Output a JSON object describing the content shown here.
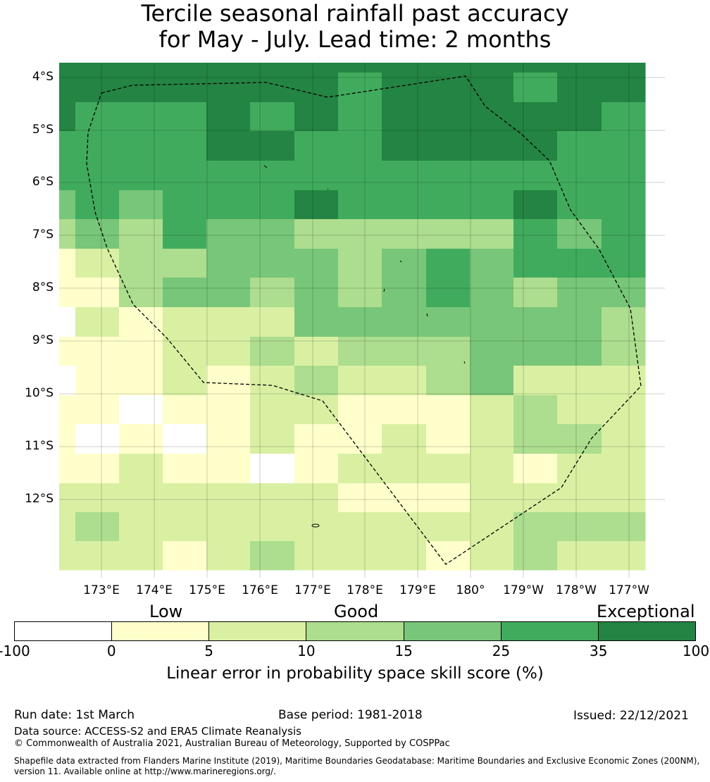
{
  "title": {
    "line1": "Tercile seasonal rainfall past accuracy",
    "line2": "for May - July. Lead time: 2 months"
  },
  "map": {
    "lat_labels": [
      "4°S",
      "5°S",
      "6°S",
      "7°S",
      "8°S",
      "9°S",
      "10°S",
      "11°S",
      "12°S"
    ],
    "lon_labels": [
      "173°E",
      "174°E",
      "175°E",
      "176°E",
      "177°E",
      "178°E",
      "179°E",
      "180°",
      "179°W",
      "178°W",
      "177°W"
    ],
    "grid_values": [
      [
        40,
        40,
        40,
        40,
        40,
        40,
        40,
        40,
        40,
        40,
        40,
        40,
        40,
        40
      ],
      [
        40,
        40,
        40,
        40,
        40,
        40,
        40,
        30,
        40,
        40,
        40,
        30,
        40,
        40
      ],
      [
        40,
        30,
        30,
        30,
        40,
        30,
        40,
        30,
        40,
        40,
        40,
        40,
        40,
        30
      ],
      [
        30,
        30,
        30,
        30,
        40,
        40,
        30,
        30,
        40,
        40,
        40,
        40,
        30,
        30
      ],
      [
        30,
        30,
        30,
        30,
        30,
        30,
        30,
        30,
        30,
        30,
        30,
        30,
        30,
        30
      ],
      [
        20,
        30,
        20,
        30,
        30,
        30,
        40,
        30,
        30,
        30,
        30,
        40,
        30,
        30
      ],
      [
        12,
        20,
        12,
        30,
        20,
        20,
        12,
        12,
        12,
        12,
        12,
        30,
        20,
        30
      ],
      [
        3,
        7,
        12,
        12,
        20,
        20,
        20,
        12,
        20,
        30,
        20,
        30,
        30,
        30
      ],
      [
        3,
        3,
        12,
        20,
        20,
        12,
        20,
        12,
        20,
        30,
        20,
        12,
        20,
        20
      ],
      [
        -50,
        7,
        3,
        7,
        7,
        7,
        20,
        20,
        20,
        20,
        20,
        20,
        20,
        12
      ],
      [
        3,
        3,
        3,
        7,
        7,
        12,
        7,
        12,
        12,
        12,
        20,
        20,
        20,
        12
      ],
      [
        -50,
        3,
        3,
        7,
        3,
        7,
        12,
        7,
        7,
        12,
        20,
        7,
        7,
        7
      ],
      [
        3,
        3,
        -50,
        3,
        3,
        7,
        7,
        3,
        3,
        3,
        7,
        12,
        7,
        7
      ],
      [
        3,
        -50,
        3,
        -50,
        3,
        7,
        3,
        3,
        7,
        3,
        7,
        12,
        12,
        7
      ],
      [
        3,
        3,
        7,
        3,
        3,
        -50,
        3,
        7,
        7,
        7,
        7,
        3,
        7,
        7
      ],
      [
        7,
        7,
        7,
        7,
        7,
        7,
        7,
        3,
        3,
        3,
        7,
        7,
        7,
        7
      ],
      [
        7,
        12,
        7,
        7,
        7,
        7,
        7,
        7,
        7,
        7,
        7,
        12,
        12,
        12
      ],
      [
        7,
        7,
        7,
        3,
        7,
        12,
        7,
        7,
        7,
        3,
        7,
        12,
        7,
        7
      ]
    ]
  },
  "legend": {
    "categories": {
      "low": "Low",
      "good": "Good",
      "exceptional": "Exceptional"
    },
    "bins": [
      -100,
      0,
      5,
      10,
      15,
      25,
      35,
      100
    ],
    "tick_labels": [
      "-100",
      "0",
      "5",
      "10",
      "15",
      "25",
      "35",
      "100"
    ],
    "colors": [
      "#ffffff",
      "#ffffcc",
      "#d9f0a3",
      "#addd8e",
      "#78c679",
      "#41ab5d",
      "#238443"
    ],
    "title": "Linear error in probability space skill score (%)"
  },
  "footer": {
    "run_date": "Run date: 1st March",
    "base_period": "Base period: 1981-2018",
    "issued": "Issued: 22/12/2021",
    "data_source": "Data source: ACCESS-S2 and ERA5 Climate Reanalysis",
    "copyright": "© Commonwealth of Australia 2021, Australian Bureau of Meteorology, Supported by COSPPac",
    "shapefile_note": "Shapefile data extracted from Flanders Marine Institute (2019), Maritime Boundaries Geodatabase: Maritime Boundaries and Exclusive Economic Zones (200NM), version 11. Available online at http://www.marineregions.org/."
  }
}
